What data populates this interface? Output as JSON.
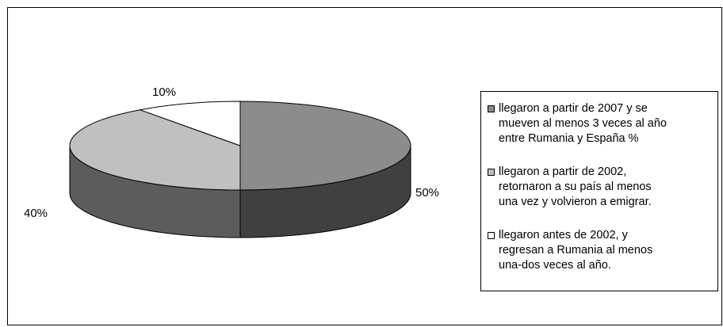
{
  "chart_data": {
    "type": "pie",
    "title": "",
    "slices": [
      {
        "label": "llegaron a partir de 2007 y se mueven al menos 3 veces al año entre Rumania y España %",
        "value": 50,
        "data_label": "50%",
        "color": "#8c8c8c"
      },
      {
        "label": "llegaron a partir de 2002, retornaron a su país al menos una vez y volvieron a emigrar.",
        "value": 40,
        "data_label": "40%",
        "color": "#c0c0c0"
      },
      {
        "label": "llegaron antes de 2002, y regresan a Rumania al menos una-dos veces al año.",
        "value": 10,
        "data_label": "10%",
        "color": "#ffffff"
      }
    ],
    "legend_position": "right",
    "style": "3d"
  },
  "legend": {
    "items": [
      {
        "text": "llegaron a partir de 2007 y se\nmueven al menos 3 veces al año\nentre Rumania y España %",
        "color": "#8c8c8c"
      },
      {
        "text": "llegaron a partir de 2002,\nretornaron a su país al menos\nuna vez y volvieron a emigrar.",
        "color": "#c0c0c0"
      },
      {
        "text": "llegaron antes de 2002, y\nregresan a Rumania al menos\nuna-dos veces al año.",
        "color": "#ffffff"
      }
    ]
  },
  "side_colors": [
    "#404040",
    "#5c5c5c",
    "#ffffff"
  ]
}
